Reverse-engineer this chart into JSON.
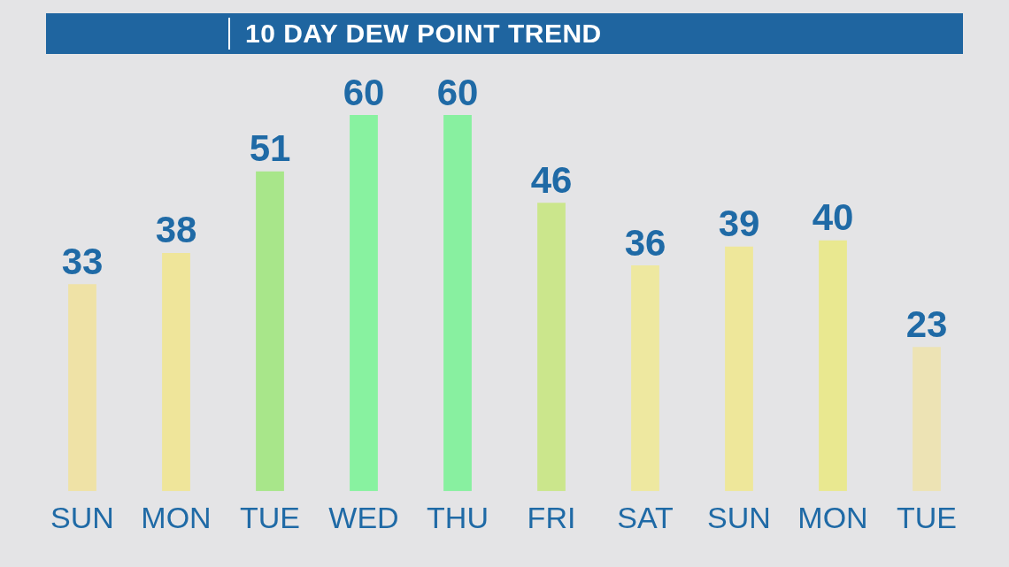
{
  "chart_data": {
    "type": "bar",
    "title": "10 DAY DEW POINT TREND",
    "categories": [
      "SUN",
      "MON",
      "TUE",
      "WED",
      "THU",
      "FRI",
      "SAT",
      "SUN",
      "MON",
      "TUE"
    ],
    "values": [
      33,
      38,
      51,
      60,
      60,
      46,
      36,
      39,
      40,
      23
    ],
    "colors": [
      "#efe2a6",
      "#efe59a",
      "#a8e68a",
      "#88f2a0",
      "#88f0a0",
      "#cbe68c",
      "#eee8a0",
      "#eee79a",
      "#e9e890",
      "#ede3b4"
    ],
    "data_labels": true,
    "grid": false,
    "legend": false,
    "tick_labels": "x"
  }
}
